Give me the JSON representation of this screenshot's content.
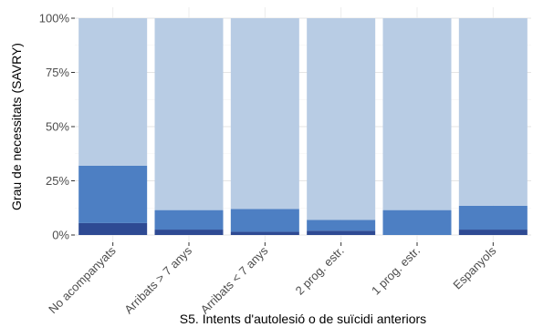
{
  "chart_data": {
    "type": "bar",
    "stacked": true,
    "normalized": true,
    "xlabel": "S5. Intents d'autolesió o de suïcidi anteriors",
    "ylabel": "Grau de necessitats (SAVRY)",
    "ylim": [
      0,
      100
    ],
    "yticks": [
      "0%",
      "25%",
      "50%",
      "75%",
      "100%"
    ],
    "ytick_values": [
      0,
      25,
      50,
      75,
      100
    ],
    "grid": true,
    "legend": "none",
    "categories": [
      "No acompanyats",
      "Arribats > 7 anys",
      "Arribats < 7 anys",
      "2 prog. estr.",
      "1 prog. estr.",
      "Espanyols"
    ],
    "series": [
      {
        "values": [
          5.5,
          2.5,
          1.5,
          2,
          0,
          2.5
        ],
        "color": "#2e4a93"
      },
      {
        "values": [
          26.5,
          9,
          10.5,
          5,
          11.5,
          11
        ],
        "color": "#4d7fc3"
      },
      {
        "values": [
          68,
          88.5,
          88,
          93,
          88.5,
          86.5
        ],
        "color": "#b8cce4"
      }
    ]
  }
}
